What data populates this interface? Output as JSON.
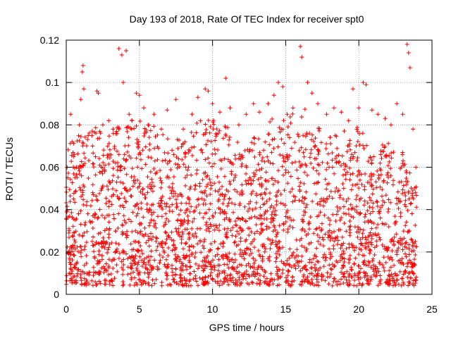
{
  "chart_data": {
    "type": "scatter",
    "title": "Day 193 of 2018, Rate Of TEC Index for receiver spt0",
    "xlabel": "GPS time / hours",
    "ylabel": "ROTI / TECUs",
    "xlim": [
      0,
      25
    ],
    "ylim": [
      0,
      0.12
    ],
    "xticks": [
      0,
      5,
      10,
      15,
      20,
      25
    ],
    "xtick_labels": [
      "0",
      "5",
      "10",
      "15",
      "20",
      "25"
    ],
    "yticks": [
      0,
      0.02,
      0.04,
      0.06,
      0.08,
      0.1,
      0.12
    ],
    "ytick_labels": [
      "0",
      "0.02",
      "0.04",
      "0.06",
      "0.08",
      "0.1",
      "0.12"
    ],
    "grid": true,
    "marker": "+",
    "color": "#ff0000",
    "series": [
      {
        "name": "ROTI",
        "points": [
          [
            0.1,
            0.055
          ],
          [
            0.2,
            0.03
          ],
          [
            0.3,
            0.085
          ],
          [
            0.4,
            0.072
          ],
          [
            0.5,
            0.045
          ],
          [
            0.7,
            0.06
          ],
          [
            0.9,
            0.08
          ],
          [
            1.0,
            0.092
          ],
          [
            1.1,
            0.105
          ],
          [
            1.15,
            0.108
          ],
          [
            1.2,
            0.097
          ],
          [
            1.5,
            0.075
          ],
          [
            1.8,
            0.07
          ],
          [
            2.0,
            0.065
          ],
          [
            2.1,
            0.096
          ],
          [
            2.2,
            0.095
          ],
          [
            2.5,
            0.08
          ],
          [
            2.9,
            0.082
          ],
          [
            3.2,
            0.078
          ],
          [
            3.6,
            0.116
          ],
          [
            3.8,
            0.113
          ],
          [
            3.9,
            0.1
          ],
          [
            4.1,
            0.115
          ],
          [
            4.3,
            0.085
          ],
          [
            4.5,
            0.082
          ],
          [
            4.8,
            0.095
          ],
          [
            5.0,
            0.094
          ],
          [
            5.3,
            0.088
          ],
          [
            5.6,
            0.08
          ],
          [
            6.0,
            0.085
          ],
          [
            6.5,
            0.078
          ],
          [
            6.9,
            0.087
          ],
          [
            7.5,
            0.092
          ],
          [
            8.0,
            0.078
          ],
          [
            8.6,
            0.085
          ],
          [
            9.0,
            0.093
          ],
          [
            9.5,
            0.097
          ],
          [
            9.7,
            0.096
          ],
          [
            10.0,
            0.09
          ],
          [
            10.5,
            0.086
          ],
          [
            10.9,
            0.102
          ],
          [
            11.2,
            0.088
          ],
          [
            11.8,
            0.08
          ],
          [
            12.3,
            0.085
          ],
          [
            12.8,
            0.09
          ],
          [
            13.2,
            0.086
          ],
          [
            13.8,
            0.09
          ],
          [
            14.2,
            0.094
          ],
          [
            14.5,
            0.1
          ],
          [
            14.8,
            0.098
          ],
          [
            15.1,
            0.085
          ],
          [
            15.5,
            0.088
          ],
          [
            16.0,
            0.117
          ],
          [
            16.1,
            0.112
          ],
          [
            16.5,
            0.1
          ],
          [
            16.8,
            0.095
          ],
          [
            17.2,
            0.09
          ],
          [
            17.8,
            0.085
          ],
          [
            18.3,
            0.088
          ],
          [
            18.8,
            0.086
          ],
          [
            19.3,
            0.082
          ],
          [
            19.6,
            0.097
          ],
          [
            20.0,
            0.088
          ],
          [
            20.3,
            0.1
          ],
          [
            20.5,
            0.099
          ],
          [
            20.9,
            0.087
          ],
          [
            21.3,
            0.085
          ],
          [
            21.8,
            0.083
          ],
          [
            22.2,
            0.08
          ],
          [
            22.6,
            0.09
          ],
          [
            23.0,
            0.085
          ],
          [
            23.3,
            0.118
          ],
          [
            23.4,
            0.114
          ],
          [
            23.5,
            0.107
          ],
          [
            23.7,
            0.078
          ],
          [
            23.9,
            0.06
          ]
        ]
      }
    ]
  }
}
